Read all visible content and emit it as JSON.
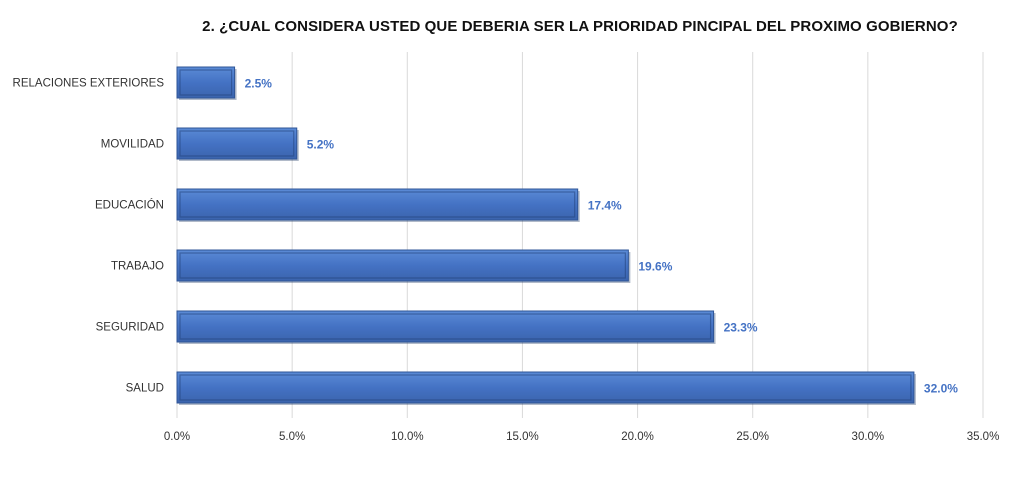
{
  "chart_data": {
    "type": "bar",
    "orientation": "horizontal",
    "title": "2. ¿CUAL CONSIDERA USTED QUE DEBERIA SER LA PRIORIDAD PINCIPAL DEL PROXIMO GOBIERNO?",
    "categories": [
      "RELACIONES EXTERIORES",
      "MOVILIDAD",
      "EDUCACIÓN",
      "TRABAJO",
      "SEGURIDAD",
      "SALUD"
    ],
    "values": [
      2.5,
      5.2,
      17.4,
      19.6,
      23.3,
      32.0
    ],
    "data_labels": [
      "2.5%",
      "5.2%",
      "17.4%",
      "19.6%",
      "23.3%",
      "32.0%"
    ],
    "xlim": [
      0,
      35
    ],
    "x_ticks": [
      0,
      5,
      10,
      15,
      20,
      25,
      30,
      35
    ],
    "x_tick_labels": [
      "0.0%",
      "5.0%",
      "10.0%",
      "15.0%",
      "20.0%",
      "25.0%",
      "30.0%",
      "35.0%"
    ],
    "xlabel": "",
    "ylabel": "",
    "grid": "vertical",
    "legend": "none",
    "colors": {
      "bar": "#4472C4",
      "bar_edge": "#2F5597",
      "data_label": "#4472C4",
      "grid": "#D9D9D9"
    }
  }
}
